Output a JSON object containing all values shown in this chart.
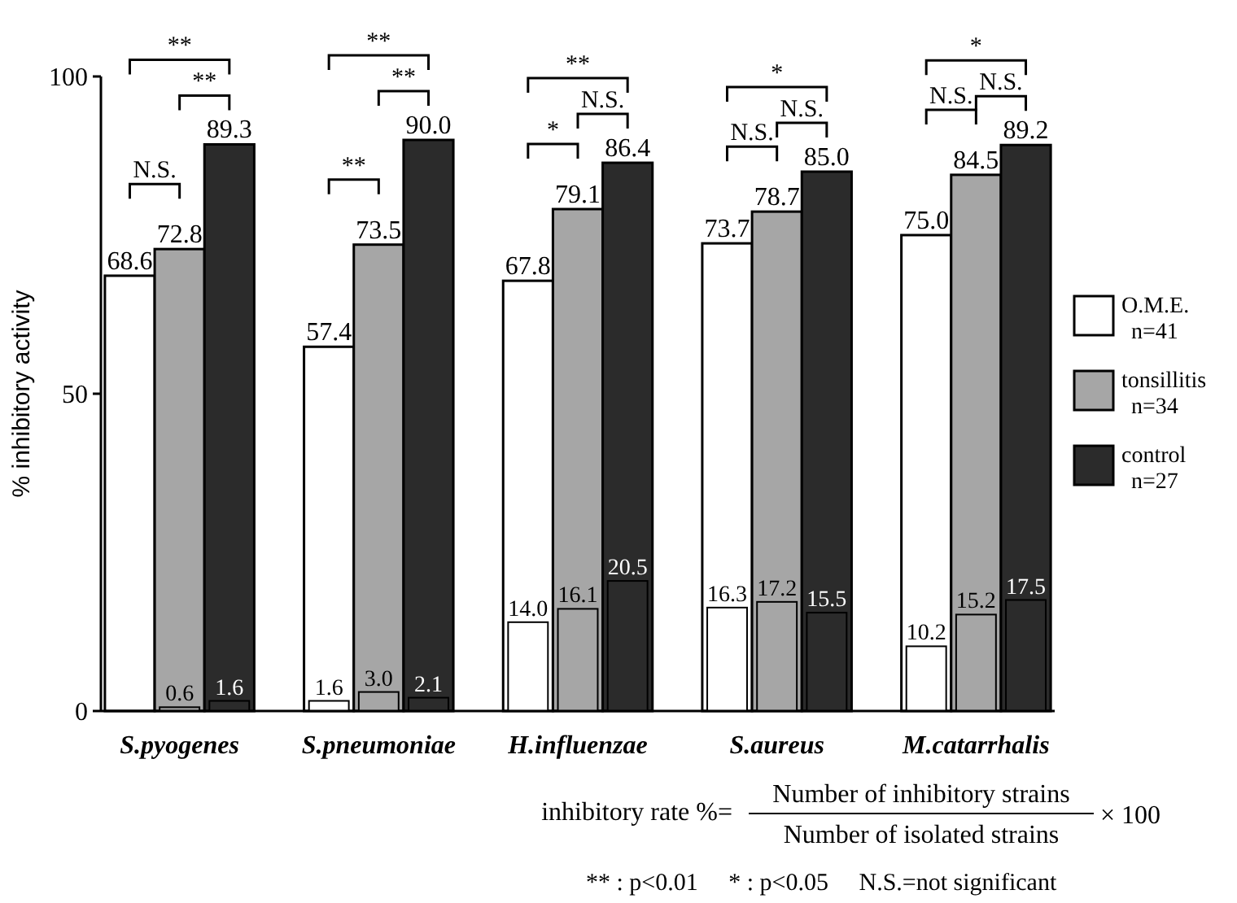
{
  "chart_data": {
    "type": "bar",
    "ylabel": "% inhibitory activity",
    "categories": [
      "S.pyogenes",
      "S.pneumoniae",
      "H.influenzae",
      "S.aureus",
      "M.catarrhalis"
    ],
    "series": [
      {
        "name": "O.M.E. n=41",
        "color": "#ffffff",
        "values": [
          68.6,
          57.4,
          67.8,
          73.7,
          75.0
        ],
        "value_labels": [
          "68.6",
          "57.4",
          "67.8",
          "73.7",
          "75.0"
        ]
      },
      {
        "name": "tonsillitis n=34",
        "color": "#a6a6a6",
        "values": [
          72.8,
          73.5,
          79.1,
          78.7,
          84.5
        ],
        "value_labels": [
          "72.8",
          "73.5",
          "79.1",
          "78.7",
          "84.5"
        ]
      },
      {
        "name": "control n=27",
        "color": "#2b2b2b",
        "values": [
          89.3,
          90.0,
          86.4,
          85.0,
          89.2
        ],
        "value_labels": [
          "89.3",
          "90.0",
          "86.4",
          "85.0",
          "89.2"
        ]
      },
      {
        "color": "#ffffff",
        "values": [
          null,
          1.6,
          14.0,
          16.3,
          10.2
        ],
        "value_labels": [
          null,
          "1.6",
          "14.0",
          "16.3",
          "10.2"
        ]
      },
      {
        "color": "#a6a6a6",
        "values": [
          0.6,
          3.0,
          16.1,
          17.2,
          15.2
        ],
        "value_labels": [
          "0.6",
          "3.0",
          "16.1",
          "17.2",
          "15.2"
        ]
      },
      {
        "color": "#2b2b2b",
        "values": [
          1.6,
          2.1,
          20.5,
          15.5,
          17.5
        ],
        "value_labels": [
          "1.6",
          "2.1",
          "20.5",
          "15.5",
          "17.5"
        ]
      }
    ],
    "ylim": [
      0,
      100
    ],
    "yticks": [
      0,
      50,
      100
    ],
    "legend": "right",
    "annotations": [
      "**",
      "**",
      "N.S.",
      "**",
      "**",
      "**",
      "**",
      "N.S.",
      "*",
      "*",
      "N.S.",
      "N.S.",
      "*",
      "N.S.",
      "N.S.",
      "inhibitory rate %=",
      "Number of inhibitory strains",
      "Number of isolated strains",
      "× 100",
      "** : p<0.01     * : p<0.05     N.S.=not significant"
    ]
  }
}
